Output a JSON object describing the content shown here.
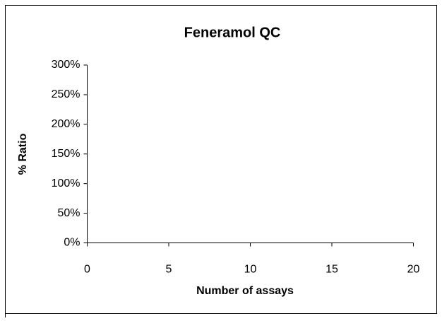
{
  "chart_data": {
    "type": "scatter",
    "title": "Feneramol QC",
    "x_label": "Number of assays",
    "y_label": "% Ratio",
    "xlim": [
      0,
      20
    ],
    "xticks": [
      0,
      5,
      10,
      15,
      20
    ],
    "ylim": [
      0,
      300
    ],
    "yticks": [
      {
        "value": 0,
        "label": "0%"
      },
      {
        "value": 50,
        "label": "50%"
      },
      {
        "value": 100,
        "label": "100%"
      },
      {
        "value": 150,
        "label": "150%"
      },
      {
        "value": 200,
        "label": "200%"
      },
      {
        "value": 250,
        "label": "250%"
      },
      {
        "value": 300,
        "label": "300%"
      }
    ]
  }
}
